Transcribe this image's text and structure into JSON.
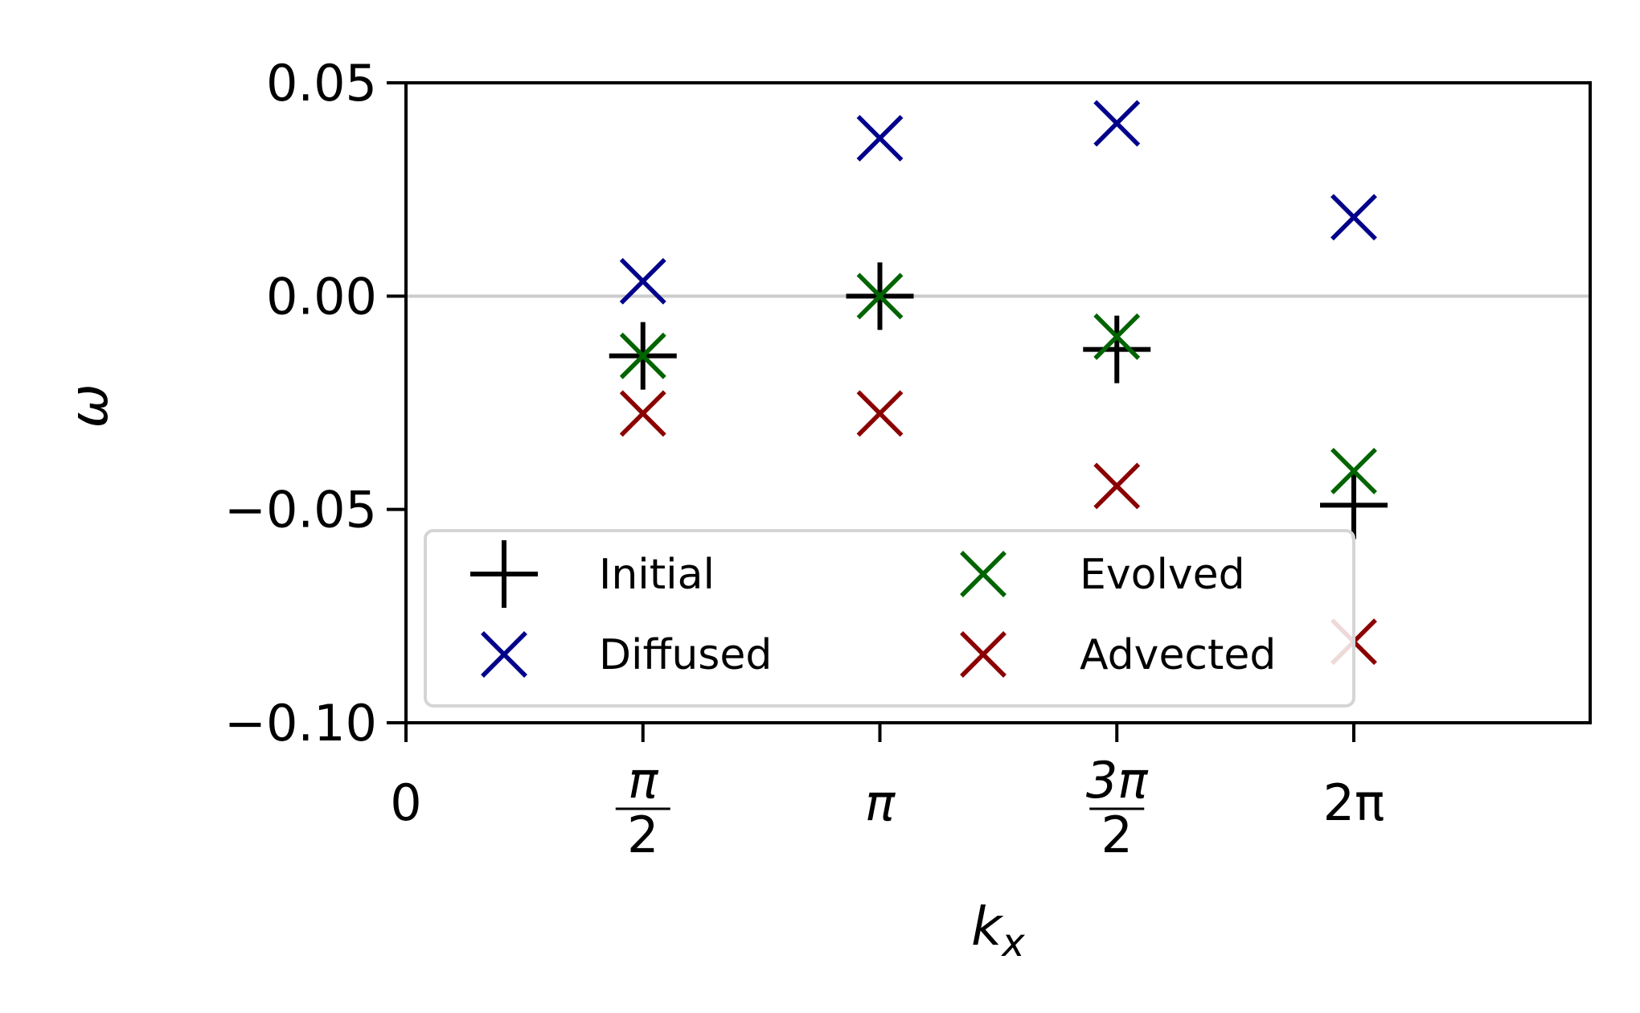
{
  "chart_data": {
    "type": "scatter",
    "xlabel": "k",
    "xlabel_sub": "x",
    "ylabel": "ω",
    "xlim": [
      0,
      7.85
    ],
    "ylim": [
      -0.1,
      0.05
    ],
    "x_ticks": [
      {
        "value": 0,
        "label": "0"
      },
      {
        "value": 1.5708,
        "num": "π",
        "den": "2"
      },
      {
        "value": 3.1416,
        "label": "π",
        "italic": true
      },
      {
        "value": 4.7124,
        "num": "3π",
        "den": "2"
      },
      {
        "value": 6.2832,
        "label": "2π"
      }
    ],
    "y_ticks": [
      {
        "value": 0.05,
        "label": "0.05"
      },
      {
        "value": 0.0,
        "label": "0.00"
      },
      {
        "value": -0.05,
        "label": "−0.05"
      },
      {
        "value": -0.1,
        "label": "−0.10"
      }
    ],
    "reference_line": {
      "y": 0.0,
      "color": "#cccccc"
    },
    "x": [
      1.5708,
      3.1416,
      4.7124,
      6.2832
    ],
    "series": [
      {
        "name": "Initial",
        "marker": "plus",
        "color": "#000000",
        "values": [
          -0.014,
          0.0,
          -0.0125,
          -0.049
        ]
      },
      {
        "name": "Diffused",
        "marker": "x",
        "color": "#00008b",
        "values": [
          0.0035,
          0.037,
          0.0405,
          0.0185
        ]
      },
      {
        "name": "Evolved",
        "marker": "x",
        "color": "#006400",
        "values": [
          -0.014,
          0.0,
          -0.0095,
          -0.041
        ]
      },
      {
        "name": "Advected",
        "marker": "x",
        "color": "#8b0000",
        "values": [
          -0.0275,
          -0.0275,
          -0.0445,
          -0.081
        ]
      }
    ],
    "legend": {
      "position": "lower-left",
      "columns": 2,
      "order": [
        "Initial",
        "Diffused",
        "Evolved",
        "Advected"
      ]
    },
    "grid": false
  }
}
